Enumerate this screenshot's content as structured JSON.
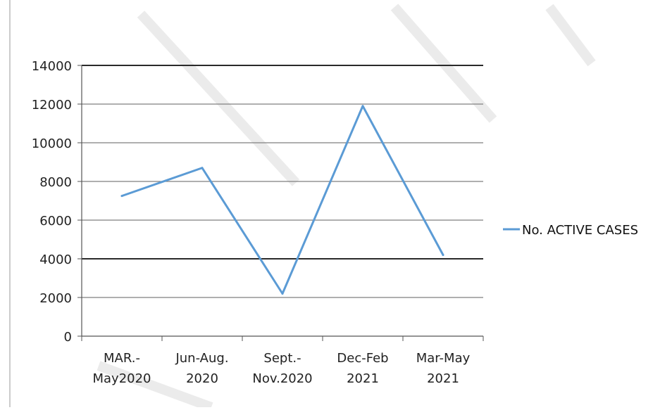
{
  "chart_data": {
    "type": "line",
    "categories": [
      [
        "MAR.-",
        "May2020"
      ],
      [
        "Jun-Aug.",
        "2020"
      ],
      [
        "Sept.-",
        "Nov.2020"
      ],
      [
        "Dec-Feb",
        "2021"
      ],
      [
        "Mar-May",
        "2021"
      ]
    ],
    "series": [
      {
        "name": "No. ACTIVE CASES",
        "color": "#5b9bd5",
        "values": [
          7250,
          8700,
          2200,
          11900,
          4200
        ]
      }
    ],
    "ylim": [
      0,
      14000
    ],
    "yticks": [
      "0",
      "2000",
      "4000",
      "6000",
      "8000",
      "10000",
      "12000",
      "14000"
    ],
    "grid": true,
    "legend_position": "right",
    "title": "",
    "xlabel": "",
    "ylabel": ""
  }
}
